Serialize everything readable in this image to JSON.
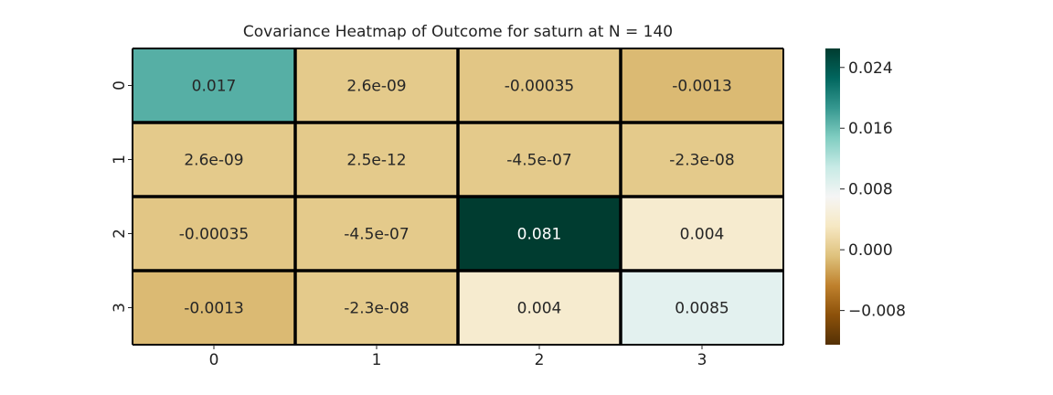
{
  "chart_data": {
    "type": "heatmap",
    "title": "Covariance Heatmap of Outcome for saturn at N = 140",
    "x_categories": [
      "0",
      "1",
      "2",
      "3"
    ],
    "y_categories": [
      "0",
      "1",
      "2",
      "3"
    ],
    "values": [
      [
        0.017,
        2.6e-09,
        -0.00035,
        -0.0013
      ],
      [
        2.6e-09,
        2.5e-12,
        -4.5e-07,
        -2.3e-08
      ],
      [
        -0.00035,
        -4.5e-07,
        0.081,
        0.004
      ],
      [
        -0.0013,
        -2.3e-08,
        0.004,
        0.0085
      ]
    ],
    "value_labels": [
      [
        "0.017",
        "2.6e-09",
        "-0.00035",
        "-0.0013"
      ],
      [
        "2.6e-09",
        "2.5e-12",
        "-4.5e-07",
        "-2.3e-08"
      ],
      [
        "-0.00035",
        "-4.5e-07",
        "0.081",
        "0.004"
      ],
      [
        "-0.0013",
        "-2.3e-08",
        "0.004",
        "0.0085"
      ]
    ],
    "colormap": "BrBG",
    "color_range": [
      -0.0125,
      0.0265
    ],
    "colorbar_ticks": [
      {
        "value": 0.024,
        "label": "0.024"
      },
      {
        "value": 0.016,
        "label": "0.016"
      },
      {
        "value": 0.008,
        "label": "0.008"
      },
      {
        "value": 0.0,
        "label": "0.000"
      },
      {
        "value": -0.008,
        "label": "−0.008"
      }
    ],
    "grid": true,
    "legend": "colorbar-right"
  }
}
